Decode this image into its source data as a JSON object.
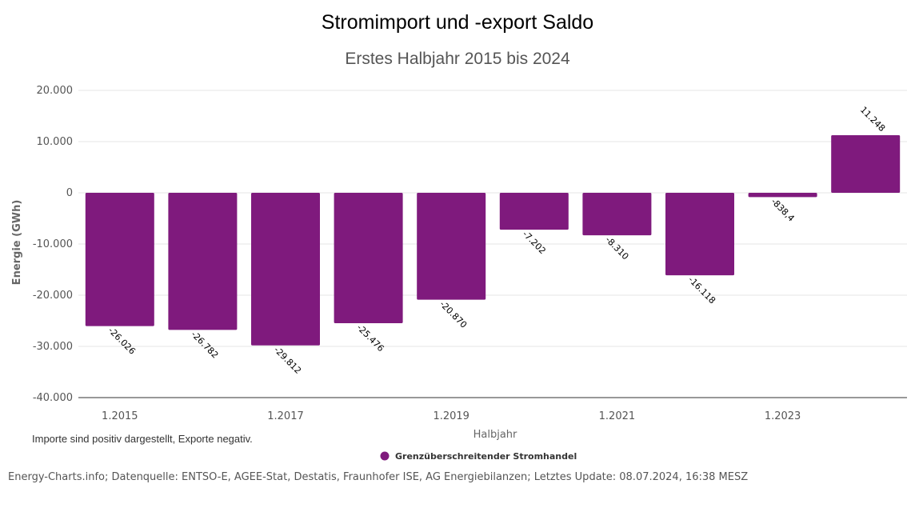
{
  "chart_data": {
    "type": "bar",
    "title": "Stromimport und -export Saldo",
    "subtitle": "Erstes Halbjahr 2015 bis 2024",
    "ylabel": "Energie (GWh)",
    "xlabel": "Halbjahr",
    "ylim": [
      -40000,
      20000
    ],
    "yticks": [
      20000,
      10000,
      0,
      -10000,
      -20000,
      -30000,
      -40000
    ],
    "ytick_labels": [
      "20.000",
      "10.000",
      "0",
      "-10.000",
      "-20.000",
      "-30.000",
      "-40.000"
    ],
    "categories": [
      "1.2015",
      "1.2016",
      "1.2017",
      "1.2018",
      "1.2019",
      "1.2020",
      "1.2021",
      "1.2022",
      "1.2023",
      "1.2024"
    ],
    "xtick_labels": [
      "1.2015",
      "",
      "1.2017",
      "",
      "1.2019",
      "",
      "1.2021",
      "",
      "1.2023",
      ""
    ],
    "series": [
      {
        "name": "Grenzüberschreitender Stromhandel",
        "color": "#7f1a7d",
        "values": [
          -26026,
          -26782,
          -29812,
          -25476,
          -20870,
          -7202,
          -8310,
          -16118,
          -838.4,
          11248
        ],
        "labels": [
          "-26.026",
          "-26.782",
          "-29.812",
          "-25.476",
          "-20.870",
          "-7.202",
          "-8.310",
          "-16.118",
          "-838,4",
          "11.248"
        ]
      }
    ],
    "grid": true,
    "legend": "bottom-center",
    "note": "Importe sind positiv dargestellt, Exporte negativ.",
    "credits": "Energy-Charts.info; Datenquelle: ENTSO-E, AGEE-Stat, Destatis, Fraunhofer ISE, AG Energiebilanzen; Letztes Update: 08.07.2024, 16:38 MESZ"
  }
}
